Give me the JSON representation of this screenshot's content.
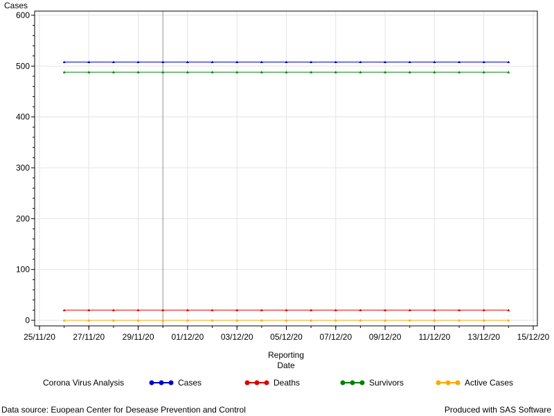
{
  "chart_data": {
    "type": "line",
    "ylabel": "Cases",
    "xlabel_lines": [
      "Reporting",
      "Date"
    ],
    "ylim": [
      0,
      600
    ],
    "y_ticks": [
      0,
      100,
      200,
      300,
      400,
      500,
      600
    ],
    "xlim": [
      "25/11/20",
      "15/12/20"
    ],
    "x_tick_labels": [
      "25/11/20",
      "27/11/20",
      "29/11/20",
      "01/12/20",
      "03/12/20",
      "05/12/20",
      "07/12/20",
      "09/12/20",
      "11/12/20",
      "13/12/20",
      "15/12/20"
    ],
    "x": [
      "26/11/20",
      "27/11/20",
      "28/11/20",
      "29/11/20",
      "30/11/20",
      "01/12/20",
      "02/12/20",
      "03/12/20",
      "04/12/20",
      "05/12/20",
      "06/12/20",
      "07/12/20",
      "08/12/20",
      "09/12/20",
      "10/12/20",
      "11/12/20",
      "12/12/20",
      "13/12/20",
      "14/12/20"
    ],
    "reference_line_x": "30/11/20",
    "grid": true,
    "series": [
      {
        "name": "Cases",
        "color": "#0000cc",
        "values": [
          508,
          508,
          508,
          508,
          508,
          508,
          508,
          508,
          508,
          508,
          508,
          508,
          508,
          508,
          508,
          508,
          508,
          508,
          508
        ]
      },
      {
        "name": "Deaths",
        "color": "#dd0000",
        "values": [
          20,
          20,
          20,
          20,
          20,
          20,
          20,
          20,
          20,
          20,
          20,
          20,
          20,
          20,
          20,
          20,
          20,
          20,
          20
        ]
      },
      {
        "name": "Survivors",
        "color": "#008000",
        "values": [
          488,
          488,
          488,
          488,
          488,
          488,
          488,
          488,
          488,
          488,
          488,
          488,
          488,
          488,
          488,
          488,
          488,
          488,
          488
        ]
      },
      {
        "name": "Active Cases",
        "color": "#ffa500",
        "values": [
          0,
          0,
          0,
          0,
          0,
          0,
          0,
          0,
          0,
          0,
          0,
          0,
          0,
          0,
          0,
          0,
          0,
          0,
          0
        ]
      }
    ]
  },
  "legend": {
    "title": "Corona Virus Analysis",
    "items": [
      "Cases",
      "Deaths",
      "Survivors",
      "Active Cases"
    ]
  },
  "footer": {
    "source": "Data source: Euopean Center for Desease Prevention and Control",
    "produced": "Produced with SAS Software"
  }
}
